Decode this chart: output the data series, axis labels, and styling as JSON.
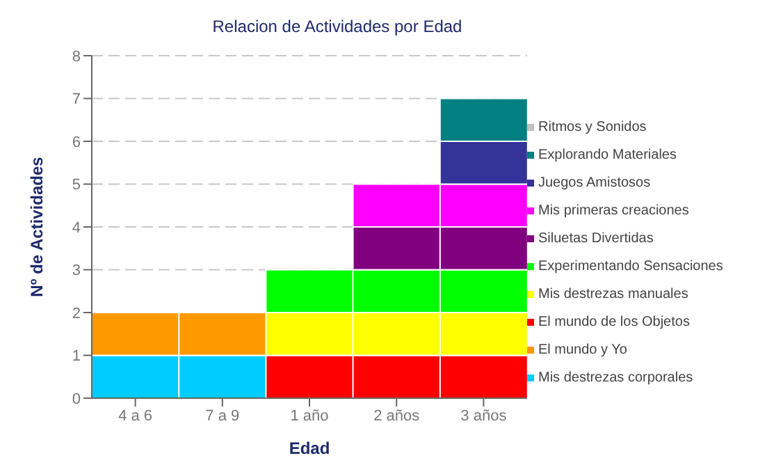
{
  "chart_data": {
    "type": "bar",
    "title": "Relacion de Actividades por Edad",
    "xlabel": "Edad",
    "ylabel": "Nº de Actividades",
    "categories": [
      "4 a 6",
      "7 a 9",
      "1 año",
      "2 años",
      "3 años"
    ],
    "stacked": true,
    "ylim": [
      0,
      8
    ],
    "yticks": [
      0,
      1,
      2,
      3,
      4,
      5,
      6,
      7,
      8
    ],
    "grid": "y",
    "legend": "right",
    "series": [
      {
        "name": "Mis destrezas corporales",
        "color": "#00ccff",
        "values": [
          1,
          1,
          0,
          0,
          0
        ]
      },
      {
        "name": "El mundo y Yo",
        "color": "#ff9900",
        "values": [
          1,
          1,
          0,
          0,
          0
        ]
      },
      {
        "name": "El mundo de los Objetos",
        "color": "#ff0000",
        "values": [
          0,
          0,
          1,
          1,
          1
        ]
      },
      {
        "name": "Mis destrezas manuales",
        "color": "#ffff00",
        "values": [
          0,
          0,
          1,
          1,
          1
        ]
      },
      {
        "name": "Experimentando Sensaciones",
        "color": "#00ff00",
        "values": [
          0,
          0,
          1,
          1,
          1
        ]
      },
      {
        "name": "Siluetas Divertidas",
        "color": "#800080",
        "values": [
          0,
          0,
          0,
          1,
          1
        ]
      },
      {
        "name": "Mis primeras creaciones",
        "color": "#ff00ff",
        "values": [
          0,
          0,
          0,
          1,
          1
        ]
      },
      {
        "name": "Juegos Amistosos",
        "color": "#333399",
        "values": [
          0,
          0,
          0,
          0,
          1
        ]
      },
      {
        "name": "Explorando Materiales",
        "color": "#008080",
        "values": [
          0,
          0,
          0,
          0,
          1
        ]
      },
      {
        "name": "Ritmos y Sonidos",
        "color": "#c0c0c0",
        "values": [
          0,
          0,
          0,
          0,
          0
        ]
      }
    ]
  }
}
